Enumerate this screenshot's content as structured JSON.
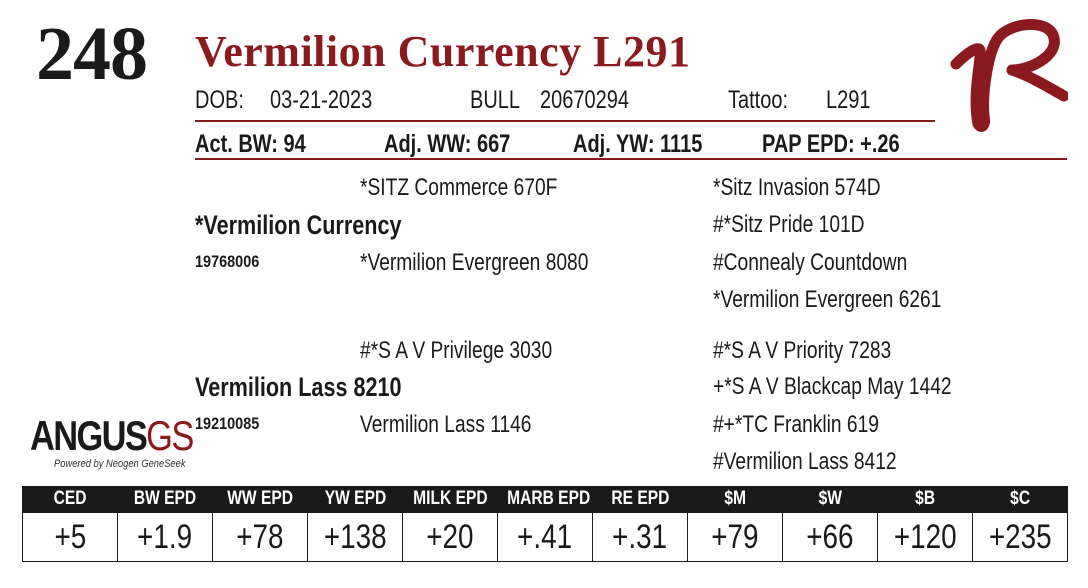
{
  "lot_number": "248",
  "animal_name": "Vermilion Currency L291",
  "id_line": {
    "dob_label": "DOB:",
    "dob_value": "03-21-2023",
    "sex_label": "BULL",
    "registration": "20670294",
    "tattoo_label": "Tattoo:",
    "tattoo_value": "L291"
  },
  "performance": {
    "act_bw": "Act. BW: 94",
    "adj_ww": "Adj. WW: 667",
    "adj_yw": "Adj. YW: 1115",
    "pap_epd": "PAP EPD: +.26"
  },
  "pedigree": {
    "sire": {
      "name": "*Vermilion Currency",
      "reg": "19768006"
    },
    "dam": {
      "name": "Vermilion Lass 8210",
      "reg": "19210085"
    },
    "sire_sire": "*SITZ Commerce 670F",
    "sire_dam": "*Vermilion Evergreen 8080",
    "dam_sire": "#*S A V Privilege 3030",
    "dam_dam": "Vermilion Lass 1146",
    "sss": "*Sitz Invasion 574D",
    "ssd": "#*Sitz Pride 101D",
    "sds": "#Connealy Countdown",
    "sdd": "*Vermilion Evergreen 6261",
    "dss": "#*S A V Priority 7283",
    "dsd": "+*S A V Blackcap May 1442",
    "dds": "#+*TC Franklin 619",
    "ddd": "#Vermilion Lass 8412"
  },
  "logo": {
    "word": "ANGUS",
    "suffix": "GS",
    "tagline": "Powered by Neogen GeneSeek",
    "brand_mark_icon": "vr-brand-icon",
    "brand_color": "#8b1a1f"
  },
  "epd_table": {
    "headers": [
      "CED",
      "BW EPD",
      "WW EPD",
      "YW EPD",
      "MILK EPD",
      "MARB EPD",
      "RE EPD",
      "$M",
      "$W",
      "$B",
      "$C"
    ],
    "values": [
      "+5",
      "+1.9",
      "+78",
      "+138",
      "+20",
      "+.41",
      "+.31",
      "+79",
      "+66",
      "+120",
      "+235"
    ]
  }
}
